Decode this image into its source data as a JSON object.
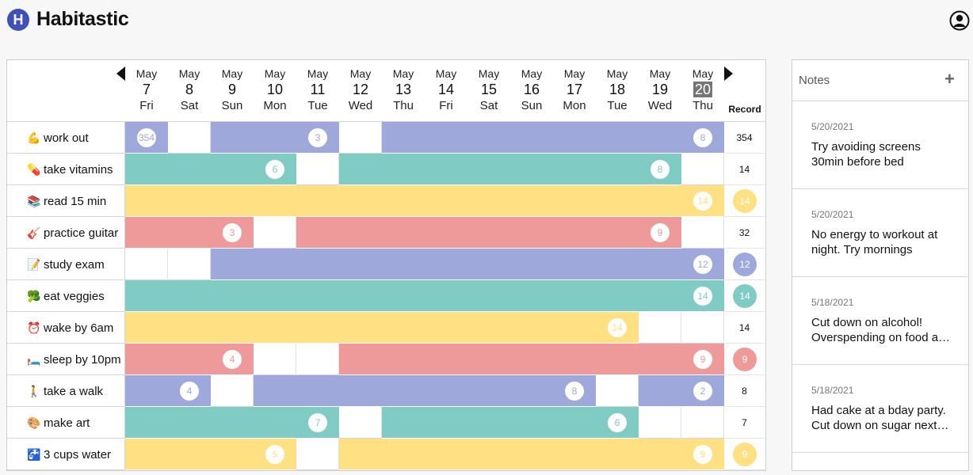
{
  "app": {
    "logo_letter": "H",
    "title": "Habitastic"
  },
  "colors": {
    "purple": "#9fa8da",
    "teal": "#80cbc4",
    "yellow": "#ffe082",
    "pink": "#ef9a9a",
    "logo": "#3f51b5",
    "today_bg": "#757575"
  },
  "dates": [
    {
      "month": "May",
      "day": "7",
      "weekday": "Fri"
    },
    {
      "month": "May",
      "day": "8",
      "weekday": "Sat"
    },
    {
      "month": "May",
      "day": "9",
      "weekday": "Sun"
    },
    {
      "month": "May",
      "day": "10",
      "weekday": "Mon"
    },
    {
      "month": "May",
      "day": "11",
      "weekday": "Tue"
    },
    {
      "month": "May",
      "day": "12",
      "weekday": "Wed"
    },
    {
      "month": "May",
      "day": "13",
      "weekday": "Thu"
    },
    {
      "month": "May",
      "day": "14",
      "weekday": "Fri"
    },
    {
      "month": "May",
      "day": "15",
      "weekday": "Sat"
    },
    {
      "month": "May",
      "day": "16",
      "weekday": "Sun"
    },
    {
      "month": "May",
      "day": "17",
      "weekday": "Mon"
    },
    {
      "month": "May",
      "day": "18",
      "weekday": "Tue"
    },
    {
      "month": "May",
      "day": "19",
      "weekday": "Wed"
    },
    {
      "month": "May",
      "day": "20",
      "weekday": "Thu",
      "today": true
    }
  ],
  "record_header": "Record",
  "habits": [
    {
      "emoji": "💪",
      "name": "work out",
      "color": "purple",
      "days": [
        1,
        0,
        1,
        1,
        1,
        0,
        1,
        1,
        1,
        1,
        1,
        1,
        1,
        1
      ],
      "streaks": [
        "354",
        "3",
        "8"
      ],
      "record": "354",
      "record_badge": false
    },
    {
      "emoji": "💊",
      "name": "take vitamins",
      "color": "teal",
      "days": [
        1,
        1,
        1,
        1,
        0,
        1,
        1,
        1,
        1,
        1,
        1,
        1,
        1,
        0
      ],
      "streaks": [
        "6",
        "8"
      ],
      "record": "14",
      "record_badge": false
    },
    {
      "emoji": "📚",
      "name": "read 15 min",
      "color": "yellow",
      "days": [
        1,
        1,
        1,
        1,
        1,
        1,
        1,
        1,
        1,
        1,
        1,
        1,
        1,
        1
      ],
      "streaks": [
        "14"
      ],
      "record": "14",
      "record_badge": true
    },
    {
      "emoji": "🎸",
      "name": "practice guitar",
      "color": "pink",
      "days": [
        1,
        1,
        1,
        0,
        1,
        1,
        1,
        1,
        1,
        1,
        1,
        1,
        1,
        0
      ],
      "streaks": [
        "3",
        "9"
      ],
      "record": "32",
      "record_badge": false
    },
    {
      "emoji": "📝",
      "name": "study exam",
      "color": "purple",
      "days": [
        0,
        0,
        1,
        1,
        1,
        1,
        1,
        1,
        1,
        1,
        1,
        1,
        1,
        1
      ],
      "streaks": [
        "12"
      ],
      "record": "12",
      "record_badge": true
    },
    {
      "emoji": "🥦",
      "name": "eat veggies",
      "color": "teal",
      "days": [
        1,
        1,
        1,
        1,
        1,
        1,
        1,
        1,
        1,
        1,
        1,
        1,
        1,
        1
      ],
      "streaks": [
        "14"
      ],
      "record": "14",
      "record_badge": true
    },
    {
      "emoji": "⏰",
      "name": "wake by 6am",
      "color": "yellow",
      "days": [
        1,
        1,
        1,
        1,
        1,
        1,
        1,
        1,
        1,
        1,
        1,
        1,
        0,
        0
      ],
      "streaks": [
        "14"
      ],
      "record": "14",
      "record_badge": false
    },
    {
      "emoji": "🛏️",
      "name": "sleep by 10pm",
      "color": "pink",
      "days": [
        1,
        1,
        1,
        0,
        0,
        1,
        1,
        1,
        1,
        1,
        1,
        1,
        1,
        1
      ],
      "streaks": [
        "4",
        "9"
      ],
      "record": "9",
      "record_badge": true
    },
    {
      "emoji": "🚶",
      "name": "take a walk",
      "color": "purple",
      "days": [
        1,
        1,
        0,
        1,
        1,
        1,
        1,
        1,
        1,
        1,
        1,
        0,
        1,
        1
      ],
      "streaks": [
        "4",
        "8",
        "2"
      ],
      "record": "8",
      "record_badge": false
    },
    {
      "emoji": "🎨",
      "name": "make art",
      "color": "teal",
      "days": [
        1,
        1,
        1,
        1,
        1,
        0,
        1,
        1,
        1,
        1,
        1,
        1,
        0,
        0
      ],
      "streaks": [
        "7",
        "6"
      ],
      "record": "7",
      "record_badge": false
    },
    {
      "emoji": "🚰",
      "name": "3 cups water",
      "color": "yellow",
      "days": [
        1,
        1,
        1,
        1,
        0,
        1,
        1,
        1,
        1,
        1,
        1,
        1,
        1,
        1
      ],
      "streaks": [
        "5",
        "9"
      ],
      "record": "9",
      "record_badge": true
    }
  ],
  "notes": {
    "title": "Notes",
    "add_label": "+",
    "items": [
      {
        "date": "5/20/2021",
        "text": "Try avoiding screens 30min before bed"
      },
      {
        "date": "5/20/2021",
        "text": "No energy to workout at night. Try mornings"
      },
      {
        "date": "5/18/2021",
        "text": "Cut down on alcohol! Overspending on food and drinks"
      },
      {
        "date": "5/18/2021",
        "text": "Had cake at a bday party. Cut down on sugar next week"
      }
    ]
  }
}
